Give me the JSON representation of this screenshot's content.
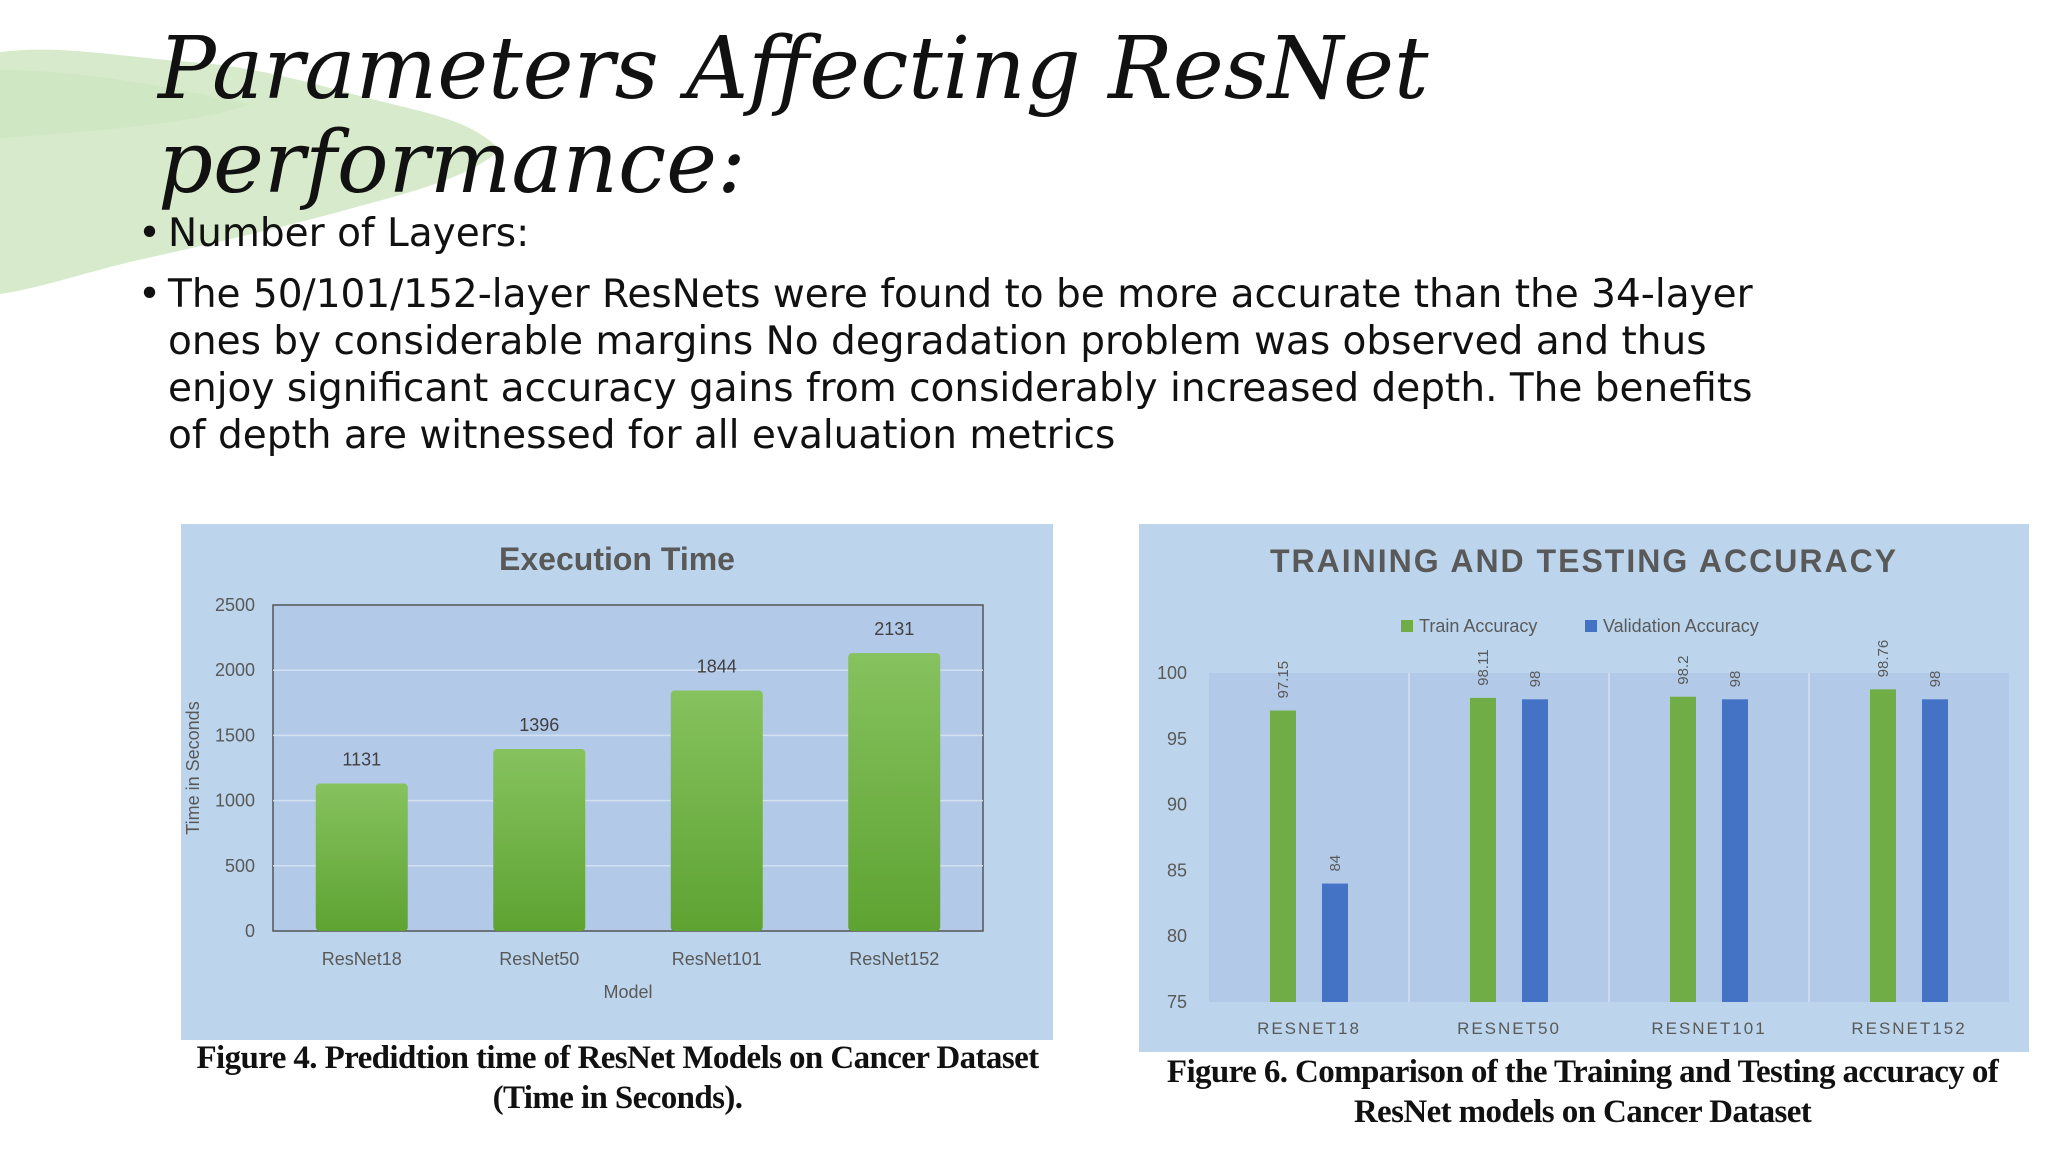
{
  "slide": {
    "title": "Parameters Affecting ResNet performance:",
    "bullets": [
      "Number of Layers:",
      "The 50/101/152-layer ResNets were found to be more accurate than the 34-layer ones by considerable margins No degradation problem was observed and thus enjoy significant accuracy gains from considerably increased depth. The benefits of depth are witnessed for all evaluation metrics"
    ]
  },
  "figures": {
    "execution_caption": "Figure 4. Predidtion time of ResNet Models on Cancer Dataset (Time in Seconds).",
    "accuracy_caption": "Figure 6. Comparison of the Training and Testing accuracy of ResNet models on Cancer Dataset"
  },
  "colors": {
    "panel_bg": "#bcd5ec",
    "plot_bg": "#b3c9e8",
    "green": "#70ad47",
    "blue": "#4472c4",
    "brush": "#d7ebcc"
  },
  "chart_data": [
    {
      "id": "execution_time",
      "type": "bar",
      "title": "Execution Time",
      "xlabel": "Model",
      "ylabel": "Time in Seconds",
      "categories": [
        "ResNet18",
        "ResNet50",
        "ResNet101",
        "ResNet152"
      ],
      "values": [
        1131,
        1396,
        1844,
        2131
      ],
      "ylim": [
        0,
        2500
      ],
      "yticks": [
        0,
        500,
        1000,
        1500,
        2000,
        2500
      ],
      "grid": true,
      "legend": "none"
    },
    {
      "id": "training_testing_accuracy",
      "type": "bar",
      "title": "TRAINING AND TESTING ACCURACY",
      "categories": [
        "RESNET18",
        "RESNET50",
        "RESNET101",
        "RESNET152"
      ],
      "series": [
        {
          "name": "Train Accuracy",
          "values": [
            97.15,
            98.11,
            98.2,
            98.76
          ]
        },
        {
          "name": "Validation Accuracy",
          "values": [
            84,
            98,
            98,
            98
          ]
        }
      ],
      "ylim": [
        75,
        100
      ],
      "yticks": [
        75,
        80,
        85,
        90,
        95,
        100
      ],
      "grid": true,
      "legend": "top"
    }
  ]
}
